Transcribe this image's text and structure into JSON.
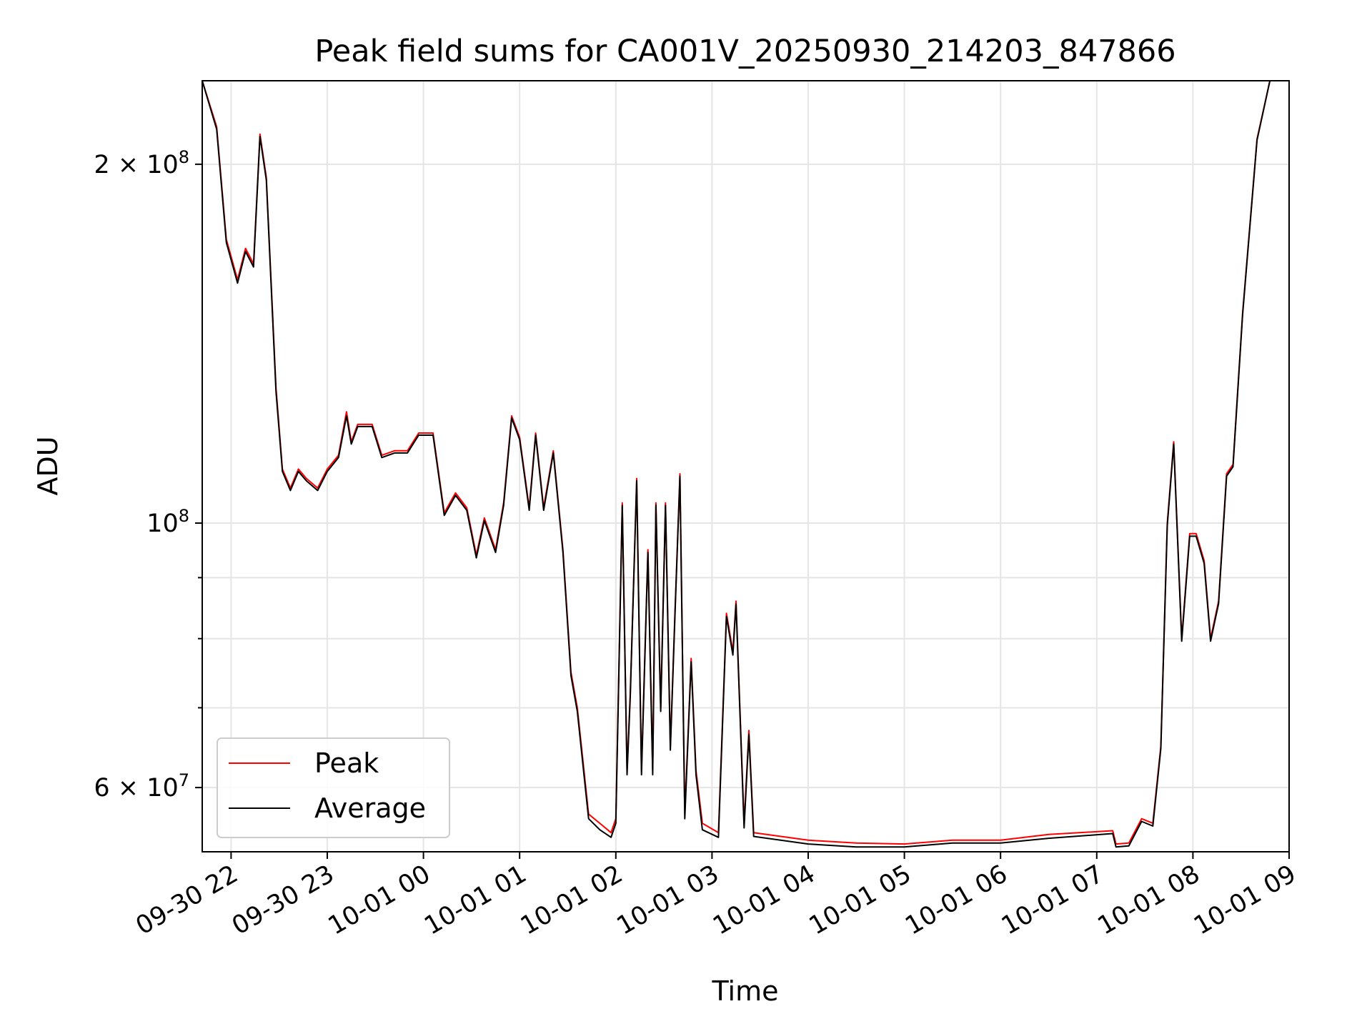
{
  "chart_data": {
    "type": "line",
    "title": "Peak field sums for CA001V_20250930_214203_847866",
    "xlabel": "Time",
    "ylabel": "ADU",
    "y_scale": "log",
    "ylim": [
      53000000,
      235000000
    ],
    "xlim": [
      "2025-09-30 21:42",
      "2025-10-01 09:00"
    ],
    "grid": true,
    "legend_position": "lower-left",
    "x_tick_labels": [
      "09-30 22",
      "09-30 23",
      "10-01 00",
      "10-01 01",
      "10-01 02",
      "10-01 03",
      "10-01 04",
      "10-01 05",
      "10-01 06",
      "10-01 07",
      "10-01 08",
      "10-01 09"
    ],
    "x_ticks": [
      "2025-09-30 22:00",
      "2025-09-30 23:00",
      "2025-10-01 00:00",
      "2025-10-01 01:00",
      "2025-10-01 02:00",
      "2025-10-01 03:00",
      "2025-10-01 04:00",
      "2025-10-01 05:00",
      "2025-10-01 06:00",
      "2025-10-01 07:00",
      "2025-10-01 08:00",
      "2025-10-01 09:00"
    ],
    "y_major_ticks": [
      {
        "value": 200000000,
        "mantissa": "2",
        "exponent": "8"
      },
      {
        "value": 100000000,
        "mantissa": "",
        "exponent": "8"
      },
      {
        "value": 60000000,
        "mantissa": "6",
        "exponent": "7"
      }
    ],
    "y_minor_gridlines": [
      70000000,
      80000000,
      90000000
    ],
    "series": [
      {
        "name": "Peak",
        "color": "#ff0000",
        "points": [
          [
            "2025-09-30 21:42",
            235000000
          ],
          [
            "2025-09-30 21:51",
            215000000
          ],
          [
            "2025-09-30 21:57",
            173000000
          ],
          [
            "2025-09-30 22:04",
            160000000
          ],
          [
            "2025-09-30 22:09",
            170000000
          ],
          [
            "2025-09-30 22:14",
            165000000
          ],
          [
            "2025-09-30 22:18",
            212000000
          ],
          [
            "2025-09-30 22:22",
            195000000
          ],
          [
            "2025-09-30 22:28",
            130000000
          ],
          [
            "2025-09-30 22:32",
            111000000
          ],
          [
            "2025-09-30 22:37",
            107000000
          ],
          [
            "2025-09-30 22:42",
            111000000
          ],
          [
            "2025-09-30 22:47",
            109000000
          ],
          [
            "2025-09-30 22:54",
            107000000
          ],
          [
            "2025-09-30 23:00",
            111000000
          ],
          [
            "2025-09-30 23:07",
            114000000
          ],
          [
            "2025-09-30 23:12",
            124000000
          ],
          [
            "2025-09-30 23:15",
            117000000
          ],
          [
            "2025-09-30 23:19",
            121000000
          ],
          [
            "2025-09-30 23:28",
            121000000
          ],
          [
            "2025-09-30 23:34",
            114000000
          ],
          [
            "2025-09-30 23:42",
            115000000
          ],
          [
            "2025-09-30 23:50",
            115000000
          ],
          [
            "2025-09-30 23:57",
            119000000
          ],
          [
            "2025-10-01 00:06",
            119000000
          ],
          [
            "2025-10-01 00:13",
            102000000
          ],
          [
            "2025-10-01 00:20",
            106000000
          ],
          [
            "2025-10-01 00:27",
            103000000
          ],
          [
            "2025-10-01 00:33",
            94000000
          ],
          [
            "2025-10-01 00:38",
            101000000
          ],
          [
            "2025-10-01 00:45",
            95000000
          ],
          [
            "2025-10-01 00:50",
            104000000
          ],
          [
            "2025-10-01 00:55",
            123000000
          ],
          [
            "2025-10-01 01:00",
            118000000
          ],
          [
            "2025-10-01 01:06",
            103000000
          ],
          [
            "2025-10-01 01:10",
            119000000
          ],
          [
            "2025-10-01 01:15",
            103000000
          ],
          [
            "2025-10-01 01:21",
            115000000
          ],
          [
            "2025-10-01 01:27",
            95000000
          ],
          [
            "2025-10-01 01:32",
            75000000
          ],
          [
            "2025-10-01 01:36",
            70000000
          ],
          [
            "2025-10-01 01:43",
            57000000
          ],
          [
            "2025-10-01 01:50",
            56000000
          ],
          [
            "2025-10-01 01:57",
            55000000
          ],
          [
            "2025-10-01 02:00",
            56500000
          ],
          [
            "2025-10-01 02:04",
            104000000
          ],
          [
            "2025-10-01 02:07",
            62000000
          ],
          [
            "2025-10-01 02:09",
            72000000
          ],
          [
            "2025-10-01 02:13",
            109000000
          ],
          [
            "2025-10-01 02:16",
            62000000
          ],
          [
            "2025-10-01 02:20",
            95000000
          ],
          [
            "2025-10-01 02:23",
            62000000
          ],
          [
            "2025-10-01 02:25",
            104000000
          ],
          [
            "2025-10-01 02:28",
            70000000
          ],
          [
            "2025-10-01 02:31",
            104000000
          ],
          [
            "2025-10-01 02:34",
            65000000
          ],
          [
            "2025-10-01 02:37",
            85000000
          ],
          [
            "2025-10-01 02:40",
            110000000
          ],
          [
            "2025-10-01 02:43",
            57000000
          ],
          [
            "2025-10-01 02:47",
            77000000
          ],
          [
            "2025-10-01 02:50",
            62000000
          ],
          [
            "2025-10-01 02:54",
            56000000
          ],
          [
            "2025-10-01 03:04",
            55000000
          ],
          [
            "2025-10-01 03:09",
            84000000
          ],
          [
            "2025-10-01 03:13",
            78000000
          ],
          [
            "2025-10-01 03:15",
            86000000
          ],
          [
            "2025-10-01 03:20",
            56000000
          ],
          [
            "2025-10-01 03:23",
            67000000
          ],
          [
            "2025-10-01 03:26",
            55000000
          ],
          [
            "2025-10-01 04:00",
            54200000
          ],
          [
            "2025-10-01 04:30",
            53900000
          ],
          [
            "2025-10-01 05:00",
            53800000
          ],
          [
            "2025-10-01 05:30",
            54200000
          ],
          [
            "2025-10-01 06:00",
            54200000
          ],
          [
            "2025-10-01 06:30",
            54800000
          ],
          [
            "2025-10-01 07:10",
            55200000
          ],
          [
            "2025-10-01 07:12",
            53800000
          ],
          [
            "2025-10-01 07:20",
            53900000
          ],
          [
            "2025-10-01 07:28",
            56500000
          ],
          [
            "2025-10-01 07:35",
            56000000
          ],
          [
            "2025-10-01 07:40",
            65000000
          ],
          [
            "2025-10-01 07:44",
            100000000
          ],
          [
            "2025-10-01 07:48",
            117000000
          ],
          [
            "2025-10-01 07:53",
            80000000
          ],
          [
            "2025-10-01 07:58",
            98000000
          ],
          [
            "2025-10-01 08:02",
            98000000
          ],
          [
            "2025-10-01 08:07",
            93000000
          ],
          [
            "2025-10-01 08:11",
            80000000
          ],
          [
            "2025-10-01 08:16",
            86000000
          ],
          [
            "2025-10-01 08:21",
            110000000
          ],
          [
            "2025-10-01 08:25",
            112000000
          ],
          [
            "2025-10-01 08:31",
            150000000
          ],
          [
            "2025-10-01 08:40",
            210000000
          ],
          [
            "2025-10-01 08:48",
            235000000
          ]
        ]
      },
      {
        "name": "Average",
        "color": "#000000",
        "points": [
          [
            "2025-09-30 21:42",
            235000000
          ],
          [
            "2025-09-30 21:51",
            214000000
          ],
          [
            "2025-09-30 21:57",
            172000000
          ],
          [
            "2025-09-30 22:04",
            159000000
          ],
          [
            "2025-09-30 22:09",
            169000000
          ],
          [
            "2025-09-30 22:14",
            164000000
          ],
          [
            "2025-09-30 22:18",
            211000000
          ],
          [
            "2025-09-30 22:22",
            194000000
          ],
          [
            "2025-09-30 22:28",
            129000000
          ],
          [
            "2025-09-30 22:32",
            110500000
          ],
          [
            "2025-09-30 22:37",
            106500000
          ],
          [
            "2025-09-30 22:42",
            110500000
          ],
          [
            "2025-09-30 22:47",
            108500000
          ],
          [
            "2025-09-30 22:54",
            106500000
          ],
          [
            "2025-09-30 23:00",
            110500000
          ],
          [
            "2025-09-30 23:07",
            113500000
          ],
          [
            "2025-09-30 23:12",
            123000000
          ],
          [
            "2025-09-30 23:15",
            116500000
          ],
          [
            "2025-09-30 23:19",
            120500000
          ],
          [
            "2025-09-30 23:28",
            120500000
          ],
          [
            "2025-09-30 23:34",
            113500000
          ],
          [
            "2025-09-30 23:42",
            114500000
          ],
          [
            "2025-09-30 23:50",
            114500000
          ],
          [
            "2025-09-30 23:57",
            118500000
          ],
          [
            "2025-10-01 00:06",
            118500000
          ],
          [
            "2025-10-01 00:13",
            101500000
          ],
          [
            "2025-10-01 00:20",
            105500000
          ],
          [
            "2025-10-01 00:27",
            102500000
          ],
          [
            "2025-10-01 00:33",
            93500000
          ],
          [
            "2025-10-01 00:38",
            100500000
          ],
          [
            "2025-10-01 00:45",
            94500000
          ],
          [
            "2025-10-01 00:50",
            103500000
          ],
          [
            "2025-10-01 00:55",
            122500000
          ],
          [
            "2025-10-01 01:00",
            117500000
          ],
          [
            "2025-10-01 01:06",
            102500000
          ],
          [
            "2025-10-01 01:10",
            118500000
          ],
          [
            "2025-10-01 01:15",
            102500000
          ],
          [
            "2025-10-01 01:21",
            114500000
          ],
          [
            "2025-10-01 01:27",
            94500000
          ],
          [
            "2025-10-01 01:32",
            74500000
          ],
          [
            "2025-10-01 01:36",
            69500000
          ],
          [
            "2025-10-01 01:43",
            56500000
          ],
          [
            "2025-10-01 01:50",
            55300000
          ],
          [
            "2025-10-01 01:57",
            54500000
          ],
          [
            "2025-10-01 02:00",
            56000000
          ],
          [
            "2025-10-01 02:04",
            103500000
          ],
          [
            "2025-10-01 02:07",
            61500000
          ],
          [
            "2025-10-01 02:09",
            71500000
          ],
          [
            "2025-10-01 02:13",
            108500000
          ],
          [
            "2025-10-01 02:16",
            61500000
          ],
          [
            "2025-10-01 02:20",
            94500000
          ],
          [
            "2025-10-01 02:23",
            61500000
          ],
          [
            "2025-10-01 02:25",
            103500000
          ],
          [
            "2025-10-01 02:28",
            69500000
          ],
          [
            "2025-10-01 02:31",
            103500000
          ],
          [
            "2025-10-01 02:34",
            64500000
          ],
          [
            "2025-10-01 02:37",
            84500000
          ],
          [
            "2025-10-01 02:40",
            109500000
          ],
          [
            "2025-10-01 02:43",
            56500000
          ],
          [
            "2025-10-01 02:47",
            76500000
          ],
          [
            "2025-10-01 02:50",
            61500000
          ],
          [
            "2025-10-01 02:54",
            55300000
          ],
          [
            "2025-10-01 03:04",
            54500000
          ],
          [
            "2025-10-01 03:09",
            83500000
          ],
          [
            "2025-10-01 03:13",
            77500000
          ],
          [
            "2025-10-01 03:15",
            85500000
          ],
          [
            "2025-10-01 03:20",
            55500000
          ],
          [
            "2025-10-01 03:23",
            66500000
          ],
          [
            "2025-10-01 03:26",
            54600000
          ],
          [
            "2025-10-01 04:00",
            53800000
          ],
          [
            "2025-10-01 04:30",
            53500000
          ],
          [
            "2025-10-01 05:00",
            53500000
          ],
          [
            "2025-10-01 05:30",
            53900000
          ],
          [
            "2025-10-01 06:00",
            53900000
          ],
          [
            "2025-10-01 06:30",
            54400000
          ],
          [
            "2025-10-01 07:10",
            54900000
          ],
          [
            "2025-10-01 07:12",
            53500000
          ],
          [
            "2025-10-01 07:20",
            53600000
          ],
          [
            "2025-10-01 07:28",
            56200000
          ],
          [
            "2025-10-01 07:35",
            55700000
          ],
          [
            "2025-10-01 07:40",
            64700000
          ],
          [
            "2025-10-01 07:44",
            99500000
          ],
          [
            "2025-10-01 07:48",
            116500000
          ],
          [
            "2025-10-01 07:53",
            79600000
          ],
          [
            "2025-10-01 07:58",
            97500000
          ],
          [
            "2025-10-01 08:02",
            97500000
          ],
          [
            "2025-10-01 08:07",
            92500000
          ],
          [
            "2025-10-01 08:11",
            79600000
          ],
          [
            "2025-10-01 08:16",
            85600000
          ],
          [
            "2025-10-01 08:21",
            109500000
          ],
          [
            "2025-10-01 08:25",
            111500000
          ],
          [
            "2025-10-01 08:31",
            149500000
          ],
          [
            "2025-10-01 08:40",
            209500000
          ],
          [
            "2025-10-01 08:48",
            235000000
          ]
        ]
      }
    ]
  }
}
